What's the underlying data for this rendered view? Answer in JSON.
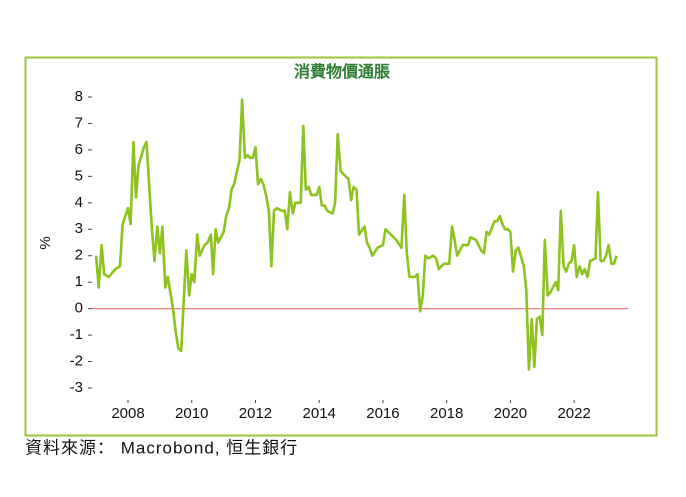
{
  "chart_data": {
    "type": "line",
    "title": "消費物價通脹",
    "y_label": "%",
    "source": "資料來源： Macrobond, 恒生銀行",
    "color": "#8dc21f",
    "reference_line": 0,
    "reference_color": "#f08080",
    "xlim": [
      2006.87,
      2023.69
    ],
    "xticks": [
      2008,
      2010,
      2012,
      2014,
      2016,
      2018,
      2020,
      2022
    ],
    "ylim": [
      -3,
      8
    ],
    "yticks": [
      -3,
      -2,
      -1,
      0,
      1,
      2,
      3,
      4,
      5,
      6,
      7,
      8
    ],
    "x": [
      2007.0,
      2007.08,
      2007.17,
      2007.25,
      2007.4,
      2007.6,
      2007.75,
      2007.83,
      2008.0,
      2008.08,
      2008.17,
      2008.25,
      2008.33,
      2008.5,
      2008.58,
      2008.75,
      2008.83,
      2008.92,
      2009.0,
      2009.08,
      2009.17,
      2009.25,
      2009.4,
      2009.5,
      2009.58,
      2009.67,
      2009.83,
      2009.92,
      2010.0,
      2010.08,
      2010.17,
      2010.25,
      2010.4,
      2010.5,
      2010.6,
      2010.67,
      2010.75,
      2010.83,
      2010.92,
      2011.0,
      2011.08,
      2011.17,
      2011.25,
      2011.33,
      2011.42,
      2011.5,
      2011.58,
      2011.67,
      2011.75,
      2011.83,
      2011.92,
      2012.0,
      2012.08,
      2012.17,
      2012.25,
      2012.33,
      2012.42,
      2012.5,
      2012.58,
      2012.67,
      2012.83,
      2012.92,
      2013.0,
      2013.08,
      2013.17,
      2013.25,
      2013.42,
      2013.5,
      2013.58,
      2013.67,
      2013.75,
      2013.92,
      2014.0,
      2014.08,
      2014.17,
      2014.25,
      2014.42,
      2014.5,
      2014.58,
      2014.67,
      2014.83,
      2014.92,
      2015.0,
      2015.08,
      2015.17,
      2015.25,
      2015.42,
      2015.5,
      2015.58,
      2015.67,
      2015.83,
      2016.0,
      2016.08,
      2016.25,
      2016.42,
      2016.58,
      2016.67,
      2016.75,
      2016.83,
      2017.0,
      2017.08,
      2017.17,
      2017.25,
      2017.33,
      2017.42,
      2017.58,
      2017.67,
      2017.75,
      2017.92,
      2018.0,
      2018.08,
      2018.17,
      2018.25,
      2018.33,
      2018.5,
      2018.67,
      2018.75,
      2018.92,
      2019.0,
      2019.08,
      2019.17,
      2019.25,
      2019.33,
      2019.5,
      2019.58,
      2019.67,
      2019.75,
      2019.83,
      2019.92,
      2020.0,
      2020.08,
      2020.17,
      2020.25,
      2020.42,
      2020.5,
      2020.58,
      2020.67,
      2020.75,
      2020.83,
      2020.92,
      2021.0,
      2021.08,
      2021.17,
      2021.25,
      2021.33,
      2021.42,
      2021.5,
      2021.58,
      2021.67,
      2021.75,
      2021.83,
      2021.92,
      2022.0,
      2022.08,
      2022.17,
      2022.25,
      2022.33,
      2022.42,
      2022.5,
      2022.67,
      2022.75,
      2022.83,
      2022.92,
      2023.0,
      2023.08,
      2023.17,
      2023.25,
      2023.33
    ],
    "values": [
      2.0,
      0.8,
      2.4,
      1.3,
      1.2,
      1.5,
      1.6,
      3.2,
      3.8,
      3.2,
      6.3,
      4.2,
      5.4,
      6.1,
      6.3,
      3.0,
      1.8,
      3.1,
      2.1,
      3.1,
      0.8,
      1.2,
      0.1,
      -0.9,
      -1.5,
      -1.6,
      2.2,
      0.5,
      1.3,
      1.0,
      2.8,
      2.0,
      2.4,
      2.5,
      2.8,
      1.3,
      3.0,
      2.5,
      2.7,
      2.9,
      3.5,
      3.8,
      4.5,
      4.7,
      5.2,
      5.6,
      7.9,
      5.7,
      5.8,
      5.7,
      5.7,
      6.1,
      4.7,
      4.9,
      4.7,
      4.3,
      3.7,
      1.6,
      3.7,
      3.8,
      3.7,
      3.7,
      3.0,
      4.4,
      3.6,
      4.0,
      4.0,
      6.9,
      4.5,
      4.6,
      4.3,
      4.3,
      4.6,
      3.9,
      3.9,
      3.7,
      3.6,
      4.0,
      6.6,
      5.2,
      5.0,
      4.9,
      4.1,
      4.6,
      4.5,
      2.8,
      3.1,
      2.5,
      2.3,
      2.0,
      2.3,
      2.4,
      3.0,
      2.8,
      2.6,
      2.3,
      4.3,
      2.1,
      1.2,
      1.2,
      1.3,
      -0.1,
      0.5,
      2.0,
      1.9,
      2.0,
      1.9,
      1.5,
      1.7,
      1.7,
      1.7,
      3.1,
      2.6,
      2.0,
      2.4,
      2.4,
      2.7,
      2.6,
      2.4,
      2.2,
      2.1,
      2.9,
      2.8,
      3.3,
      3.3,
      3.5,
      3.2,
      3.0,
      3.0,
      2.9,
      1.4,
      2.2,
      2.3,
      1.6,
      0.7,
      -2.3,
      -0.4,
      -2.2,
      -0.4,
      -0.3,
      -1.0,
      2.6,
      0.5,
      0.6,
      0.8,
      1.0,
      0.7,
      3.7,
      1.6,
      1.4,
      1.7,
      1.8,
      2.4,
      1.2,
      1.6,
      1.3,
      1.5,
      1.2,
      1.8,
      1.9,
      4.4,
      1.8,
      1.8,
      2.0,
      2.4,
      1.7,
      1.7,
      2.0
    ]
  }
}
